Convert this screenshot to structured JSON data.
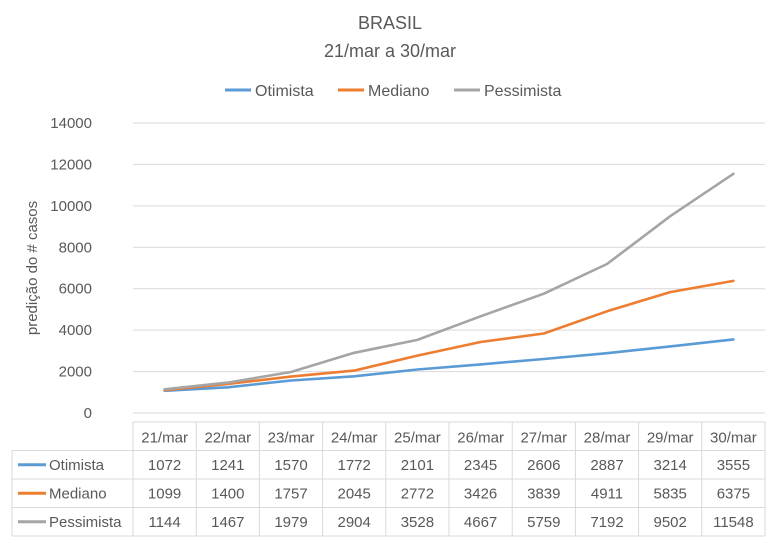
{
  "chart_data": {
    "type": "line",
    "title": "BRASIL",
    "subtitle": "21/mar a 30/mar",
    "ylabel": "predição do # casos",
    "xlabel": "",
    "ylim": [
      0,
      14000
    ],
    "yticks": [
      0,
      2000,
      4000,
      6000,
      8000,
      10000,
      12000,
      14000
    ],
    "grid": true,
    "legend": "top",
    "data_table": true,
    "categories": [
      "21/mar",
      "22/mar",
      "23/mar",
      "24/mar",
      "25/mar",
      "26/mar",
      "27/mar",
      "28/mar",
      "29/mar",
      "30/mar"
    ],
    "series": [
      {
        "name": "Otimista",
        "color": "#5b9bd5",
        "values": [
          1072,
          1241,
          1570,
          1772,
          2101,
          2345,
          2606,
          2887,
          3214,
          3555
        ]
      },
      {
        "name": "Mediano",
        "color": "#ed7d31",
        "values": [
          1099,
          1400,
          1757,
          2045,
          2772,
          3426,
          3839,
          4911,
          5835,
          6375
        ]
      },
      {
        "name": "Pessimista",
        "color": "#a5a5a5",
        "values": [
          1144,
          1467,
          1979,
          2904,
          3528,
          4667,
          5759,
          7192,
          9502,
          11548
        ]
      }
    ]
  }
}
